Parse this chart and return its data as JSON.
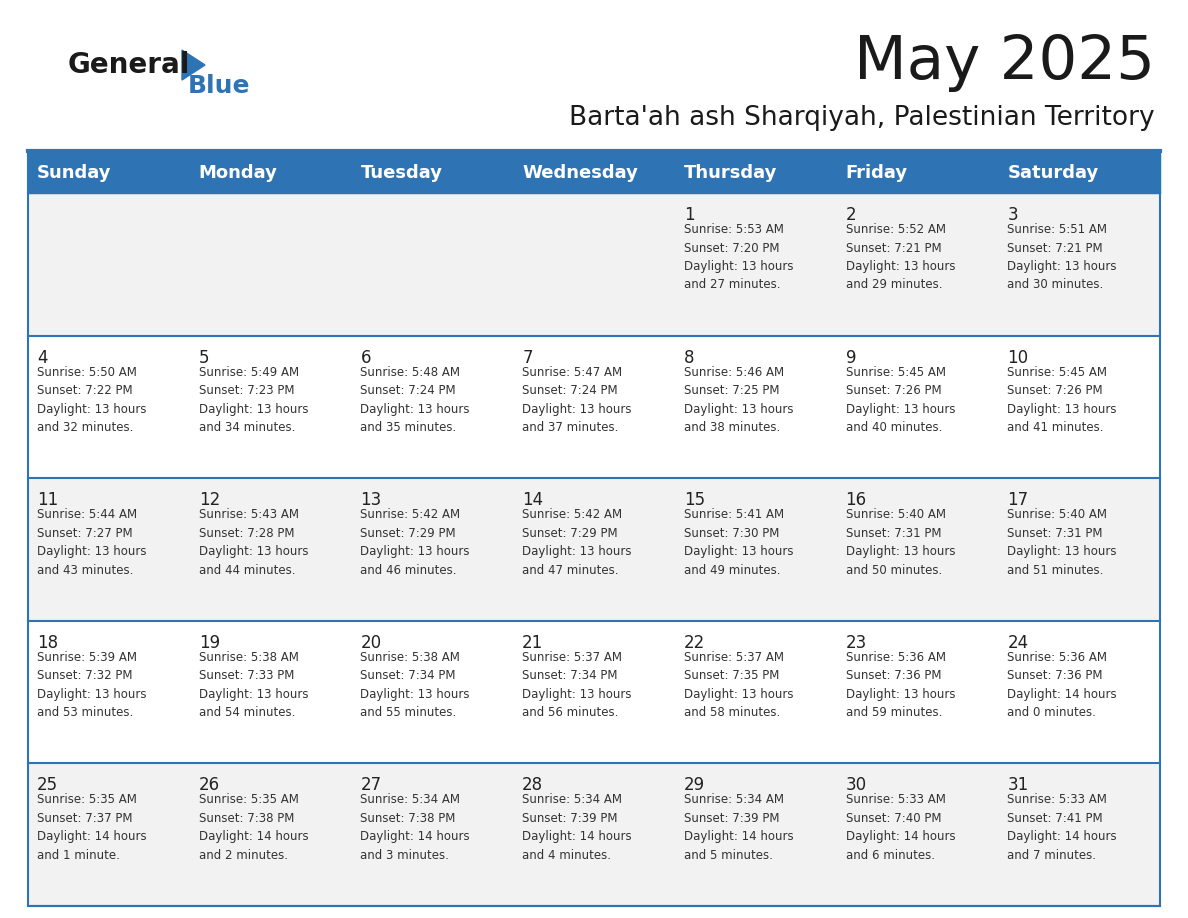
{
  "title": "May 2025",
  "subtitle": "Barta'ah ash Sharqiyah, Palestinian Territory",
  "days_of_week": [
    "Sunday",
    "Monday",
    "Tuesday",
    "Wednesday",
    "Thursday",
    "Friday",
    "Saturday"
  ],
  "header_bg": "#2E74B5",
  "header_text_color": "#FFFFFF",
  "row_bg_colors": [
    "#F2F2F2",
    "#FFFFFF",
    "#F2F2F2",
    "#FFFFFF",
    "#F2F2F2"
  ],
  "cell_text_color": "#333333",
  "day_num_color": "#222222",
  "border_color": "#2E74B5",
  "title_color": "#1a1a1a",
  "subtitle_color": "#1a1a1a",
  "logo_general_color": "#1a1a1a",
  "logo_blue_color": "#2E74B5",
  "calendar": [
    [
      {
        "day": "",
        "info": ""
      },
      {
        "day": "",
        "info": ""
      },
      {
        "day": "",
        "info": ""
      },
      {
        "day": "",
        "info": ""
      },
      {
        "day": "1",
        "info": "Sunrise: 5:53 AM\nSunset: 7:20 PM\nDaylight: 13 hours\nand 27 minutes."
      },
      {
        "day": "2",
        "info": "Sunrise: 5:52 AM\nSunset: 7:21 PM\nDaylight: 13 hours\nand 29 minutes."
      },
      {
        "day": "3",
        "info": "Sunrise: 5:51 AM\nSunset: 7:21 PM\nDaylight: 13 hours\nand 30 minutes."
      }
    ],
    [
      {
        "day": "4",
        "info": "Sunrise: 5:50 AM\nSunset: 7:22 PM\nDaylight: 13 hours\nand 32 minutes."
      },
      {
        "day": "5",
        "info": "Sunrise: 5:49 AM\nSunset: 7:23 PM\nDaylight: 13 hours\nand 34 minutes."
      },
      {
        "day": "6",
        "info": "Sunrise: 5:48 AM\nSunset: 7:24 PM\nDaylight: 13 hours\nand 35 minutes."
      },
      {
        "day": "7",
        "info": "Sunrise: 5:47 AM\nSunset: 7:24 PM\nDaylight: 13 hours\nand 37 minutes."
      },
      {
        "day": "8",
        "info": "Sunrise: 5:46 AM\nSunset: 7:25 PM\nDaylight: 13 hours\nand 38 minutes."
      },
      {
        "day": "9",
        "info": "Sunrise: 5:45 AM\nSunset: 7:26 PM\nDaylight: 13 hours\nand 40 minutes."
      },
      {
        "day": "10",
        "info": "Sunrise: 5:45 AM\nSunset: 7:26 PM\nDaylight: 13 hours\nand 41 minutes."
      }
    ],
    [
      {
        "day": "11",
        "info": "Sunrise: 5:44 AM\nSunset: 7:27 PM\nDaylight: 13 hours\nand 43 minutes."
      },
      {
        "day": "12",
        "info": "Sunrise: 5:43 AM\nSunset: 7:28 PM\nDaylight: 13 hours\nand 44 minutes."
      },
      {
        "day": "13",
        "info": "Sunrise: 5:42 AM\nSunset: 7:29 PM\nDaylight: 13 hours\nand 46 minutes."
      },
      {
        "day": "14",
        "info": "Sunrise: 5:42 AM\nSunset: 7:29 PM\nDaylight: 13 hours\nand 47 minutes."
      },
      {
        "day": "15",
        "info": "Sunrise: 5:41 AM\nSunset: 7:30 PM\nDaylight: 13 hours\nand 49 minutes."
      },
      {
        "day": "16",
        "info": "Sunrise: 5:40 AM\nSunset: 7:31 PM\nDaylight: 13 hours\nand 50 minutes."
      },
      {
        "day": "17",
        "info": "Sunrise: 5:40 AM\nSunset: 7:31 PM\nDaylight: 13 hours\nand 51 minutes."
      }
    ],
    [
      {
        "day": "18",
        "info": "Sunrise: 5:39 AM\nSunset: 7:32 PM\nDaylight: 13 hours\nand 53 minutes."
      },
      {
        "day": "19",
        "info": "Sunrise: 5:38 AM\nSunset: 7:33 PM\nDaylight: 13 hours\nand 54 minutes."
      },
      {
        "day": "20",
        "info": "Sunrise: 5:38 AM\nSunset: 7:34 PM\nDaylight: 13 hours\nand 55 minutes."
      },
      {
        "day": "21",
        "info": "Sunrise: 5:37 AM\nSunset: 7:34 PM\nDaylight: 13 hours\nand 56 minutes."
      },
      {
        "day": "22",
        "info": "Sunrise: 5:37 AM\nSunset: 7:35 PM\nDaylight: 13 hours\nand 58 minutes."
      },
      {
        "day": "23",
        "info": "Sunrise: 5:36 AM\nSunset: 7:36 PM\nDaylight: 13 hours\nand 59 minutes."
      },
      {
        "day": "24",
        "info": "Sunrise: 5:36 AM\nSunset: 7:36 PM\nDaylight: 14 hours\nand 0 minutes."
      }
    ],
    [
      {
        "day": "25",
        "info": "Sunrise: 5:35 AM\nSunset: 7:37 PM\nDaylight: 14 hours\nand 1 minute."
      },
      {
        "day": "26",
        "info": "Sunrise: 5:35 AM\nSunset: 7:38 PM\nDaylight: 14 hours\nand 2 minutes."
      },
      {
        "day": "27",
        "info": "Sunrise: 5:34 AM\nSunset: 7:38 PM\nDaylight: 14 hours\nand 3 minutes."
      },
      {
        "day": "28",
        "info": "Sunrise: 5:34 AM\nSunset: 7:39 PM\nDaylight: 14 hours\nand 4 minutes."
      },
      {
        "day": "29",
        "info": "Sunrise: 5:34 AM\nSunset: 7:39 PM\nDaylight: 14 hours\nand 5 minutes."
      },
      {
        "day": "30",
        "info": "Sunrise: 5:33 AM\nSunset: 7:40 PM\nDaylight: 14 hours\nand 6 minutes."
      },
      {
        "day": "31",
        "info": "Sunrise: 5:33 AM\nSunset: 7:41 PM\nDaylight: 14 hours\nand 7 minutes."
      }
    ]
  ]
}
